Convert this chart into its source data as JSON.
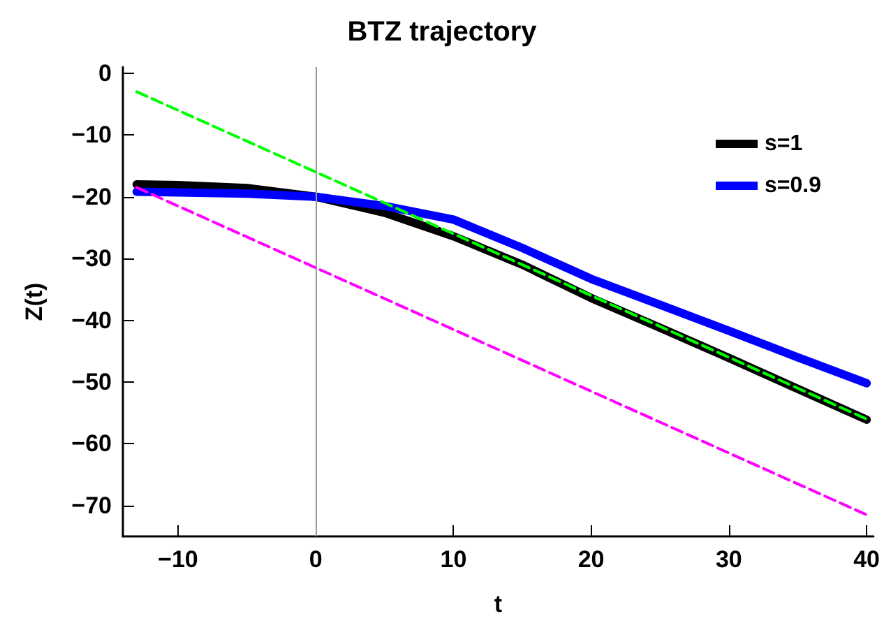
{
  "chart_data": {
    "type": "line",
    "title": "BTZ trajectory",
    "xlabel": "t",
    "ylabel": "Z(t)",
    "xlim": [
      -14,
      40.5
    ],
    "xticks": [
      -10,
      0,
      10,
      20,
      30,
      40
    ],
    "ylim": [
      -75,
      1
    ],
    "yticks": [
      0,
      -10,
      -20,
      -30,
      -40,
      -50,
      -60,
      -70
    ],
    "grid": false,
    "legend": "top right",
    "marker": "none",
    "line_style": "solid",
    "ref_lines": [
      {
        "axis": "x",
        "value": 0,
        "color": "#999999"
      }
    ],
    "series": [
      {
        "name": "s=1",
        "color": "#000000",
        "x": [
          -13,
          -10,
          -5,
          0,
          5,
          10,
          15,
          20,
          25,
          30,
          35,
          40
        ],
        "values": [
          -18,
          -18.1,
          -18.6,
          -20,
          -22.6,
          -26.4,
          -31,
          -36.4,
          -41.2,
          -46.1,
          -51.1,
          -56.1
        ]
      },
      {
        "name": "s=0.9",
        "color": "#0000ff",
        "x": [
          -13,
          -10,
          -5,
          0,
          5,
          10,
          15,
          20,
          25,
          30,
          35,
          40
        ],
        "values": [
          -19.2,
          -19.3,
          -19.5,
          -20,
          -21.5,
          -23.7,
          -28.3,
          -33.3,
          -37.5,
          -41.7,
          -46,
          -50.2
        ]
      },
      {
        "color": "#00ff00",
        "line_style": "dashed",
        "x": [
          -13,
          40
        ],
        "values": [
          -3,
          -56
        ]
      },
      {
        "color": "#ff00ff",
        "line_style": "dashed",
        "x": [
          -13,
          40
        ],
        "values": [
          -18.5,
          -71.5
        ]
      }
    ]
  }
}
